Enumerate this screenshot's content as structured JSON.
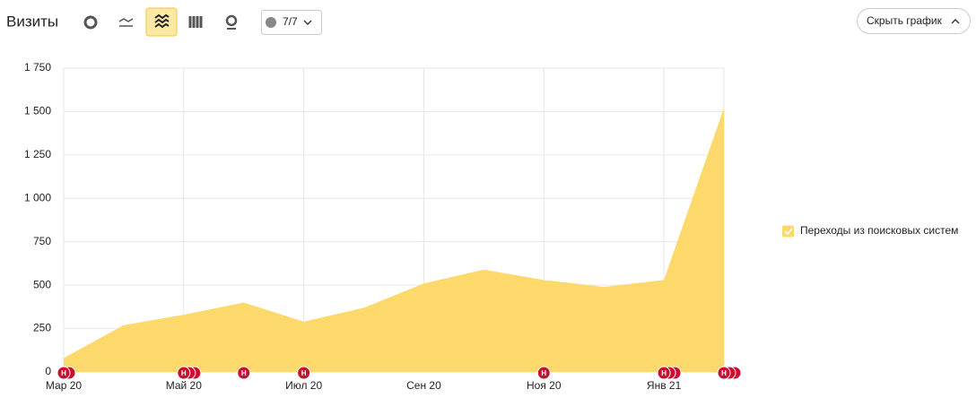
{
  "header": {
    "title": "Визиты",
    "annotations_toggle": "7/7",
    "hide_chart": "Скрыть график"
  },
  "chart_data": {
    "type": "area",
    "categories": [
      "Мар 20",
      null,
      "Май 20",
      null,
      "Июл 20",
      null,
      "Сен 20",
      null,
      "Ноя 20",
      null,
      "Янв 21",
      null
    ],
    "series": [
      {
        "name": "Переходы из поисковых систем",
        "color": "#fdd86a",
        "values": [
          80,
          270,
          330,
          400,
          290,
          370,
          510,
          590,
          530,
          490,
          530,
          1520
        ]
      }
    ],
    "ylim": [
      0,
      1750
    ],
    "yticks": [
      0,
      250,
      500,
      750,
      {
        "value": 1000,
        "label": "1 000"
      },
      {
        "value": 1250,
        "label": "1 250"
      },
      {
        "value": 1500,
        "label": "1 500"
      },
      {
        "value": 1750,
        "label": "1 750"
      }
    ],
    "grid": true,
    "legend": "right",
    "annotation_label": "Н"
  }
}
